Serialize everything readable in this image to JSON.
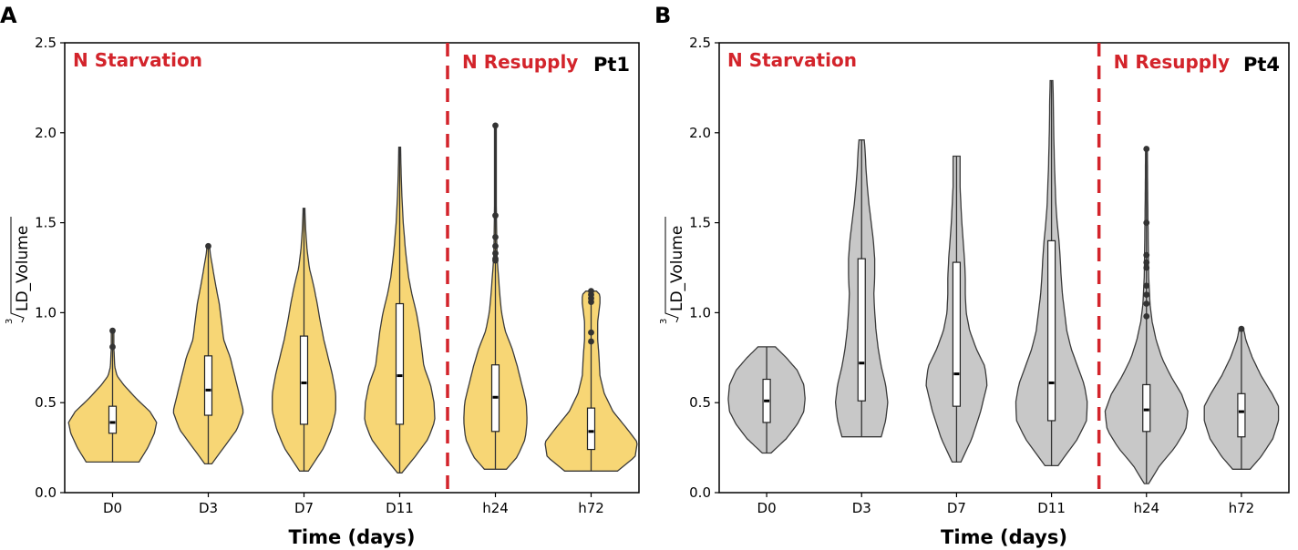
{
  "figure": {
    "panels": [
      "A",
      "B"
    ]
  },
  "colors": {
    "panelA_fill": "#f7d675",
    "panelB_fill": "#c8c8c8",
    "annotation": "#d3242b",
    "divider": "#d3242b",
    "outline": "#3a3a3a"
  },
  "chart_data": [
    {
      "type": "violin",
      "panel": "A",
      "strain": "Pt1",
      "annotation_left": "N Starvation",
      "annotation_right": "N Resupply",
      "xlabel": "Time (days)",
      "ylabel": "LD_Volume",
      "ylabel_root_index": "3",
      "ylim": [
        0,
        2.5
      ],
      "yticks": [
        "0.0",
        "0.5",
        "1.0",
        "1.5",
        "2.0",
        "2.5"
      ],
      "divider_between": [
        "D11",
        "h24"
      ],
      "categories": [
        "D0",
        "D3",
        "D7",
        "D11",
        "h24",
        "h72"
      ],
      "series": [
        {
          "name": "D0",
          "min": 0.17,
          "max": 0.9,
          "q1": 0.33,
          "median": 0.39,
          "q3": 0.48,
          "outliers": [
            0.81,
            0.9
          ],
          "density": [
            [
              0.17,
              0.6
            ],
            [
              0.25,
              0.8
            ],
            [
              0.33,
              0.95
            ],
            [
              0.39,
              1.0
            ],
            [
              0.45,
              0.85
            ],
            [
              0.52,
              0.55
            ],
            [
              0.6,
              0.25
            ],
            [
              0.65,
              0.1
            ],
            [
              0.7,
              0.05
            ],
            [
              0.8,
              0.03
            ],
            [
              0.9,
              0.03
            ]
          ]
        },
        {
          "name": "D3",
          "min": 0.16,
          "max": 1.37,
          "q1": 0.43,
          "median": 0.57,
          "q3": 0.76,
          "outliers": [
            1.37
          ],
          "density": [
            [
              0.16,
              0.08
            ],
            [
              0.25,
              0.35
            ],
            [
              0.35,
              0.65
            ],
            [
              0.45,
              0.8
            ],
            [
              0.55,
              0.7
            ],
            [
              0.65,
              0.6
            ],
            [
              0.75,
              0.5
            ],
            [
              0.85,
              0.35
            ],
            [
              0.95,
              0.3
            ],
            [
              1.05,
              0.25
            ],
            [
              1.15,
              0.17
            ],
            [
              1.25,
              0.1
            ],
            [
              1.32,
              0.05
            ],
            [
              1.37,
              0.03
            ]
          ]
        },
        {
          "name": "D7",
          "min": 0.12,
          "max": 1.58,
          "q1": 0.38,
          "median": 0.61,
          "q3": 0.87,
          "outliers": [],
          "density": [
            [
              0.12,
              0.1
            ],
            [
              0.25,
              0.45
            ],
            [
              0.35,
              0.62
            ],
            [
              0.45,
              0.72
            ],
            [
              0.55,
              0.72
            ],
            [
              0.65,
              0.65
            ],
            [
              0.75,
              0.55
            ],
            [
              0.85,
              0.45
            ],
            [
              0.95,
              0.37
            ],
            [
              1.05,
              0.3
            ],
            [
              1.15,
              0.22
            ],
            [
              1.25,
              0.12
            ],
            [
              1.35,
              0.07
            ],
            [
              1.45,
              0.04
            ],
            [
              1.58,
              0.02
            ]
          ]
        },
        {
          "name": "D11",
          "min": 0.11,
          "max": 1.92,
          "q1": 0.38,
          "median": 0.65,
          "q3": 1.05,
          "outliers": [],
          "density": [
            [
              0.11,
              0.05
            ],
            [
              0.2,
              0.35
            ],
            [
              0.3,
              0.65
            ],
            [
              0.4,
              0.8
            ],
            [
              0.5,
              0.78
            ],
            [
              0.6,
              0.7
            ],
            [
              0.7,
              0.55
            ],
            [
              0.8,
              0.5
            ],
            [
              0.9,
              0.45
            ],
            [
              1.0,
              0.38
            ],
            [
              1.1,
              0.28
            ],
            [
              1.2,
              0.2
            ],
            [
              1.35,
              0.13
            ],
            [
              1.5,
              0.08
            ],
            [
              1.65,
              0.05
            ],
            [
              1.8,
              0.03
            ],
            [
              1.92,
              0.02
            ]
          ]
        },
        {
          "name": "h24",
          "min": 0.13,
          "max": 2.04,
          "q1": 0.34,
          "median": 0.53,
          "q3": 0.71,
          "outliers": [
            1.29,
            1.3,
            1.33,
            1.37,
            1.42,
            1.54,
            2.04
          ],
          "density": [
            [
              0.13,
              0.25
            ],
            [
              0.2,
              0.5
            ],
            [
              0.3,
              0.68
            ],
            [
              0.4,
              0.72
            ],
            [
              0.5,
              0.7
            ],
            [
              0.6,
              0.6
            ],
            [
              0.7,
              0.5
            ],
            [
              0.8,
              0.38
            ],
            [
              0.9,
              0.22
            ],
            [
              1.0,
              0.14
            ],
            [
              1.1,
              0.1
            ],
            [
              1.2,
              0.07
            ],
            [
              1.3,
              0.04
            ],
            [
              1.4,
              0.03
            ],
            [
              1.6,
              0.02
            ],
            [
              2.04,
              0.02
            ]
          ]
        },
        {
          "name": "h72",
          "min": 0.12,
          "max": 1.12,
          "q1": 0.24,
          "median": 0.34,
          "q3": 0.47,
          "outliers": [
            0.84,
            0.89,
            1.06,
            1.08,
            1.1,
            1.12
          ],
          "density": [
            [
              0.12,
              0.6
            ],
            [
              0.2,
              1.0
            ],
            [
              0.28,
              1.05
            ],
            [
              0.36,
              0.8
            ],
            [
              0.45,
              0.5
            ],
            [
              0.55,
              0.3
            ],
            [
              0.65,
              0.2
            ],
            [
              0.75,
              0.18
            ],
            [
              0.85,
              0.15
            ],
            [
              0.95,
              0.15
            ],
            [
              1.05,
              0.2
            ],
            [
              1.1,
              0.2
            ],
            [
              1.12,
              0.12
            ]
          ]
        }
      ]
    },
    {
      "type": "violin",
      "panel": "B",
      "strain": "Pt4",
      "annotation_left": "N Starvation",
      "annotation_right": "N Resupply",
      "xlabel": "Time (days)",
      "ylabel": "LD_Volume",
      "ylabel_root_index": "3",
      "ylim": [
        0,
        2.5
      ],
      "yticks": [
        "0.0",
        "0.5",
        "1.0",
        "1.5",
        "2.0",
        "2.5"
      ],
      "divider_between": [
        "D11",
        "h24"
      ],
      "categories": [
        "D0",
        "D3",
        "D7",
        "D11",
        "h24",
        "h72"
      ],
      "series": [
        {
          "name": "D0",
          "min": 0.22,
          "max": 0.81,
          "q1": 0.39,
          "median": 0.51,
          "q3": 0.63,
          "outliers": [],
          "density": [
            [
              0.22,
              0.1
            ],
            [
              0.3,
              0.45
            ],
            [
              0.38,
              0.7
            ],
            [
              0.45,
              0.85
            ],
            [
              0.52,
              0.88
            ],
            [
              0.6,
              0.85
            ],
            [
              0.68,
              0.7
            ],
            [
              0.75,
              0.45
            ],
            [
              0.81,
              0.2
            ]
          ]
        },
        {
          "name": "D3",
          "min": 0.31,
          "max": 1.96,
          "q1": 0.51,
          "median": 0.72,
          "q3": 1.3,
          "outliers": [],
          "density": [
            [
              0.31,
              0.45
            ],
            [
              0.4,
              0.55
            ],
            [
              0.5,
              0.6
            ],
            [
              0.6,
              0.55
            ],
            [
              0.7,
              0.45
            ],
            [
              0.8,
              0.38
            ],
            [
              0.9,
              0.33
            ],
            [
              1.0,
              0.3
            ],
            [
              1.1,
              0.28
            ],
            [
              1.2,
              0.3
            ],
            [
              1.3,
              0.3
            ],
            [
              1.4,
              0.27
            ],
            [
              1.5,
              0.22
            ],
            [
              1.6,
              0.17
            ],
            [
              1.7,
              0.13
            ],
            [
              1.8,
              0.1
            ],
            [
              1.9,
              0.08
            ],
            [
              1.96,
              0.06
            ]
          ]
        },
        {
          "name": "D7",
          "min": 0.17,
          "max": 1.87,
          "q1": 0.48,
          "median": 0.66,
          "q3": 1.28,
          "outliers": [],
          "density": [
            [
              0.17,
              0.1
            ],
            [
              0.3,
              0.35
            ],
            [
              0.45,
              0.55
            ],
            [
              0.6,
              0.7
            ],
            [
              0.7,
              0.65
            ],
            [
              0.8,
              0.45
            ],
            [
              0.9,
              0.3
            ],
            [
              1.0,
              0.22
            ],
            [
              1.1,
              0.2
            ],
            [
              1.2,
              0.2
            ],
            [
              1.3,
              0.18
            ],
            [
              1.4,
              0.15
            ],
            [
              1.5,
              0.12
            ],
            [
              1.6,
              0.1
            ],
            [
              1.7,
              0.08
            ],
            [
              1.8,
              0.08
            ],
            [
              1.87,
              0.08
            ]
          ]
        },
        {
          "name": "D11",
          "min": 0.15,
          "max": 2.29,
          "q1": 0.4,
          "median": 0.61,
          "q3": 1.4,
          "outliers": [],
          "density": [
            [
              0.15,
              0.15
            ],
            [
              0.3,
              0.6
            ],
            [
              0.4,
              0.8
            ],
            [
              0.5,
              0.82
            ],
            [
              0.6,
              0.75
            ],
            [
              0.7,
              0.6
            ],
            [
              0.8,
              0.45
            ],
            [
              0.9,
              0.35
            ],
            [
              1.0,
              0.3
            ],
            [
              1.1,
              0.25
            ],
            [
              1.2,
              0.22
            ],
            [
              1.3,
              0.2
            ],
            [
              1.4,
              0.17
            ],
            [
              1.5,
              0.13
            ],
            [
              1.6,
              0.1
            ],
            [
              1.8,
              0.07
            ],
            [
              2.0,
              0.05
            ],
            [
              2.2,
              0.04
            ],
            [
              2.29,
              0.03
            ]
          ]
        },
        {
          "name": "h24",
          "min": 0.05,
          "max": 1.91,
          "q1": 0.34,
          "median": 0.46,
          "q3": 0.6,
          "outliers": [
            0.98,
            1.05,
            1.1,
            1.15,
            1.25,
            1.28,
            1.32,
            1.5,
            1.91
          ],
          "density": [
            [
              0.05,
              0.05
            ],
            [
              0.15,
              0.3
            ],
            [
              0.25,
              0.65
            ],
            [
              0.35,
              0.9
            ],
            [
              0.45,
              0.95
            ],
            [
              0.55,
              0.8
            ],
            [
              0.65,
              0.55
            ],
            [
              0.75,
              0.35
            ],
            [
              0.85,
              0.22
            ],
            [
              0.95,
              0.13
            ],
            [
              1.05,
              0.08
            ],
            [
              1.2,
              0.05
            ],
            [
              1.4,
              0.04
            ],
            [
              1.6,
              0.03
            ],
            [
              1.91,
              0.02
            ]
          ]
        },
        {
          "name": "h72",
          "min": 0.13,
          "max": 0.91,
          "q1": 0.31,
          "median": 0.45,
          "q3": 0.55,
          "outliers": [
            0.91
          ],
          "density": [
            [
              0.13,
              0.2
            ],
            [
              0.2,
              0.45
            ],
            [
              0.3,
              0.72
            ],
            [
              0.4,
              0.85
            ],
            [
              0.48,
              0.85
            ],
            [
              0.55,
              0.7
            ],
            [
              0.65,
              0.45
            ],
            [
              0.75,
              0.25
            ],
            [
              0.85,
              0.1
            ],
            [
              0.91,
              0.05
            ]
          ]
        }
      ]
    }
  ]
}
